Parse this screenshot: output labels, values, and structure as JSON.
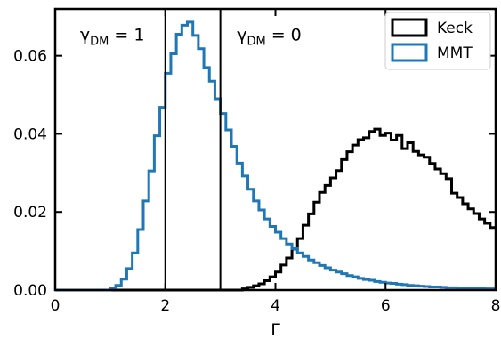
{
  "chart_data": {
    "type": "step-histogram",
    "xlabel": "Γ",
    "ylabel": "",
    "xlim": [
      0,
      8
    ],
    "ylim": [
      0,
      0.072
    ],
    "xticks": [
      0,
      2,
      4,
      6,
      8
    ],
    "xtick_labels": [
      "0",
      "2",
      "4",
      "6",
      "8"
    ],
    "yticks": [
      0.0,
      0.02,
      0.04,
      0.06
    ],
    "ytick_labels": [
      "0.00",
      "0.02",
      "0.04",
      "0.06"
    ],
    "grid": false,
    "legend_position": "top-right",
    "bin_width": 0.1,
    "vlines": [
      2,
      3
    ],
    "annotations": [
      {
        "main": "γ",
        "sub": "DM",
        "rest": " = 1",
        "x": 0.45,
        "y": 0.0655
      },
      {
        "main": "γ",
        "sub": "DM",
        "rest": " = 0",
        "x": 3.3,
        "y": 0.0655
      }
    ],
    "series": [
      {
        "name": "Keck",
        "color": "#000000",
        "bin_start": 0.0,
        "values": [
          0,
          0,
          0,
          0,
          0,
          0,
          0,
          0,
          0,
          0,
          0,
          0,
          0,
          0,
          0,
          0,
          0,
          0,
          0,
          0,
          0,
          0,
          0,
          0,
          0,
          0,
          0,
          0,
          0,
          0,
          0,
          0,
          0,
          0,
          0.0003,
          0.0007,
          0.0011,
          0.0016,
          0.0024,
          0.0034,
          0.0046,
          0.0064,
          0.0082,
          0.0105,
          0.0132,
          0.0166,
          0.0195,
          0.0225,
          0.025,
          0.0268,
          0.0287,
          0.0306,
          0.0334,
          0.0354,
          0.0371,
          0.0385,
          0.039,
          0.0406,
          0.0412,
          0.0396,
          0.0402,
          0.0384,
          0.0396,
          0.0362,
          0.0377,
          0.0355,
          0.0346,
          0.034,
          0.0324,
          0.031,
          0.0298,
          0.0285,
          0.0248,
          0.0237,
          0.0221,
          0.0208,
          0.0196,
          0.0182,
          0.0171,
          0.016,
          0.015,
          0.014,
          0.0131,
          0.0122,
          0.0114,
          0.0106,
          0.0098,
          0.0092,
          0.0086,
          0.008,
          0.0074,
          0.0069,
          0.0064,
          0.0059,
          0.0055,
          0.0051,
          0.0047,
          0.0044,
          0.0041,
          0.0038,
          0.0035,
          0.0032,
          0.003,
          0.0028,
          0.0026,
          0.0024,
          0.0022,
          0.002,
          0.0018,
          0.0016,
          0.0015,
          0.0014,
          0.0012,
          0.0011,
          0.001,
          0.0009,
          0.0008,
          0.0008,
          0.0007,
          0.0006,
          0.0006,
          0.0005,
          0.0005,
          0.0004,
          0.0004,
          0.0004,
          0.0003,
          0.0003,
          0.0003,
          0.0003,
          0.0002,
          0.0002,
          0.0002,
          0.0002,
          0.0002,
          0.0002,
          0.0001,
          0.0001,
          0.0001,
          0.0001
        ]
      },
      {
        "name": "MMT",
        "color": "#1f77b4",
        "bin_start": 0.0,
        "values": [
          0,
          0,
          0,
          0,
          0,
          0,
          0,
          0,
          0,
          0,
          0.0005,
          0.0012,
          0.0028,
          0.0055,
          0.0095,
          0.0155,
          0.0228,
          0.0305,
          0.0395,
          0.0468,
          0.0555,
          0.0605,
          0.0655,
          0.0678,
          0.0686,
          0.0652,
          0.0618,
          0.057,
          0.0535,
          0.049,
          0.0452,
          0.041,
          0.0368,
          0.0325,
          0.0292,
          0.0258,
          0.0228,
          0.0205,
          0.0182,
          0.0163,
          0.0148,
          0.0132,
          0.0118,
          0.0106,
          0.0095,
          0.0086,
          0.0077,
          0.007,
          0.0063,
          0.0057,
          0.0051,
          0.0046,
          0.0042,
          0.0037,
          0.0034,
          0.003,
          0.0027,
          0.0025,
          0.0022,
          0.002,
          0.0018,
          0.0017,
          0.0015,
          0.0014,
          0.0012,
          0.0011,
          0.001,
          0.0009,
          0.0008,
          0.0008,
          0.0007,
          0.0006,
          0.0006,
          0.0005,
          0.0005,
          0.0004,
          0.0004,
          0.0004,
          0.0003,
          0.0003,
          0.0003,
          0.0003,
          0.0002,
          0.0002,
          0.0002,
          0.0002,
          0.0002,
          0.0001,
          0.0001,
          0.0001,
          0.0001,
          0.0001,
          0.0001,
          0.0001,
          0.0001,
          0,
          0,
          0,
          0,
          0,
          0,
          0,
          0,
          0,
          0,
          0,
          0,
          0,
          0,
          0,
          0,
          0,
          0,
          0,
          0,
          0,
          0,
          0,
          0,
          0,
          0,
          0,
          0,
          0,
          0,
          0,
          0,
          0,
          0,
          0,
          0,
          0,
          0,
          0,
          0,
          0,
          0,
          0,
          0,
          0
        ]
      }
    ]
  }
}
